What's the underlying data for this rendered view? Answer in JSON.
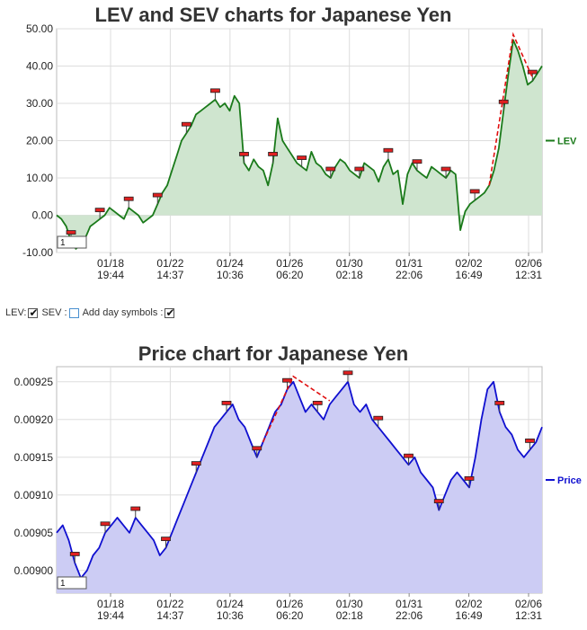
{
  "chart_data": [
    {
      "type": "area",
      "title": "LEV and SEV charts for Japanese Yen",
      "xlabel": "",
      "ylabel": "",
      "ylim": [
        -10,
        50
      ],
      "yticks": [
        "50.00",
        "40.00",
        "30.00",
        "20.00",
        "10.00",
        "0.00",
        "-10.00"
      ],
      "ytick_values": [
        50,
        40,
        30,
        20,
        10,
        0,
        -10
      ],
      "xticks": [
        {
          "date": "01/18",
          "time": "19:44"
        },
        {
          "date": "01/22",
          "time": "14:37"
        },
        {
          "date": "01/24",
          "time": "10:36"
        },
        {
          "date": "01/26",
          "time": "06:20"
        },
        {
          "date": "01/30",
          "time": "02:18"
        },
        {
          "date": "01/31",
          "time": "22:06"
        },
        {
          "date": "02/02",
          "time": "16:49"
        },
        {
          "date": "02/06",
          "time": "12:31"
        }
      ],
      "grid": true,
      "legend_position": "right",
      "series": [
        {
          "name": "LEV",
          "color": "#1a7a1a",
          "fill": "#cfe5cf",
          "values": [
            0,
            -1,
            -3,
            -7,
            -9,
            -8,
            -6,
            -3,
            -2,
            -1,
            0,
            2,
            1,
            0,
            -1,
            2,
            1,
            0,
            -2,
            -1,
            0,
            3,
            6,
            8,
            12,
            16,
            20,
            22,
            24,
            27,
            28,
            29,
            30,
            31,
            29,
            30,
            28,
            32,
            30,
            14,
            12,
            15,
            13,
            12,
            8,
            14,
            26,
            20,
            18,
            16,
            14,
            13,
            12,
            17,
            14,
            13,
            11,
            10,
            13,
            15,
            14,
            12,
            11,
            10,
            14,
            13,
            12,
            9,
            13,
            15,
            11,
            12,
            3,
            11,
            14,
            12,
            11,
            10,
            13,
            12,
            11,
            10,
            12,
            11,
            -4,
            1,
            3,
            4,
            5,
            6,
            8,
            12,
            18,
            28,
            38,
            47,
            44,
            40,
            35,
            36,
            38,
            40
          ]
        }
      ],
      "markers": [
        {
          "label": "1"
        }
      ]
    },
    {
      "type": "area",
      "title": "Price chart for Japanese Yen",
      "xlabel": "",
      "ylabel": "",
      "ylim": [
        0.00897,
        0.00927
      ],
      "yticks": [
        "0.00925",
        "0.00920",
        "0.00915",
        "0.00910",
        "0.00905",
        "0.00900"
      ],
      "ytick_values": [
        0.00925,
        0.0092,
        0.00915,
        0.0091,
        0.00905,
        0.009
      ],
      "xticks": [
        {
          "date": "01/18",
          "time": "19:44"
        },
        {
          "date": "01/22",
          "time": "14:37"
        },
        {
          "date": "01/24",
          "time": "10:36"
        },
        {
          "date": "01/26",
          "time": "06:20"
        },
        {
          "date": "01/30",
          "time": "02:18"
        },
        {
          "date": "01/31",
          "time": "22:06"
        },
        {
          "date": "02/02",
          "time": "16:49"
        },
        {
          "date": "02/06",
          "time": "12:31"
        }
      ],
      "grid": true,
      "legend_position": "right",
      "series": [
        {
          "name": "Price",
          "color": "#1010d0",
          "fill": "#ccccf4",
          "values": [
            0.00905,
            0.00906,
            0.00904,
            0.00901,
            0.00899,
            0.009,
            0.00902,
            0.00903,
            0.00905,
            0.00906,
            0.00907,
            0.00906,
            0.00905,
            0.00907,
            0.00906,
            0.00905,
            0.00904,
            0.00902,
            0.00903,
            0.00905,
            0.00907,
            0.00909,
            0.00911,
            0.00913,
            0.00915,
            0.00917,
            0.00919,
            0.0092,
            0.00921,
            0.00922,
            0.0092,
            0.00919,
            0.00917,
            0.00915,
            0.00917,
            0.00919,
            0.00921,
            0.00922,
            0.00924,
            0.00925,
            0.00923,
            0.00921,
            0.00922,
            0.00921,
            0.0092,
            0.00922,
            0.00923,
            0.00924,
            0.00925,
            0.00922,
            0.00921,
            0.00922,
            0.0092,
            0.00919,
            0.00918,
            0.00917,
            0.00916,
            0.00915,
            0.00914,
            0.00915,
            0.00913,
            0.00912,
            0.00911,
            0.00908,
            0.0091,
            0.00912,
            0.00913,
            0.00912,
            0.00911,
            0.00915,
            0.0092,
            0.00924,
            0.00925,
            0.00921,
            0.00919,
            0.00918,
            0.00916,
            0.00915,
            0.00916,
            0.00917,
            0.00919
          ]
        }
      ],
      "markers": [
        {
          "label": "1"
        }
      ]
    }
  ],
  "controls": {
    "lev_label": "LEV:",
    "lev_checked": true,
    "sev_label": "SEV :",
    "sev_checked": false,
    "day_symbols_label": "Add day symbols :",
    "day_symbols_checked": true
  }
}
